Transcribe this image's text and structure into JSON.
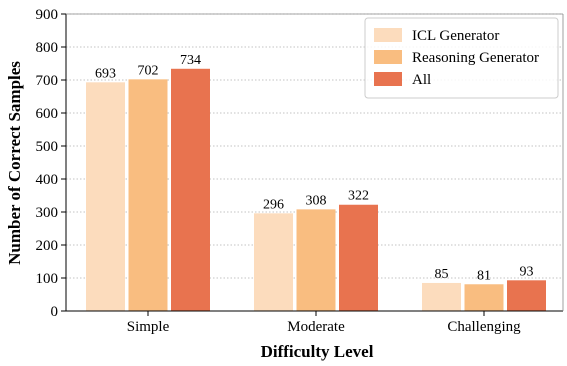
{
  "chart_data": {
    "type": "bar",
    "xlabel": "Difficulty Level",
    "ylabel": "Number of Correct Samples",
    "categories": [
      "Simple",
      "Moderate",
      "Challenging"
    ],
    "series": [
      {
        "name": "ICL Generator",
        "values": [
          693,
          296,
          85
        ],
        "color": "#fcdcbd"
      },
      {
        "name": "Reasoning Generator",
        "values": [
          702,
          308,
          81
        ],
        "color": "#f9bd80"
      },
      {
        "name": "All",
        "values": [
          734,
          322,
          93
        ],
        "color": "#e8734f"
      }
    ],
    "ylim": [
      0,
      900
    ],
    "yticks": [
      0,
      100,
      200,
      300,
      400,
      500,
      600,
      700,
      800,
      900
    ],
    "grid": "horizontal-dotted",
    "legend_position": "top-right",
    "show_data_labels": true
  }
}
